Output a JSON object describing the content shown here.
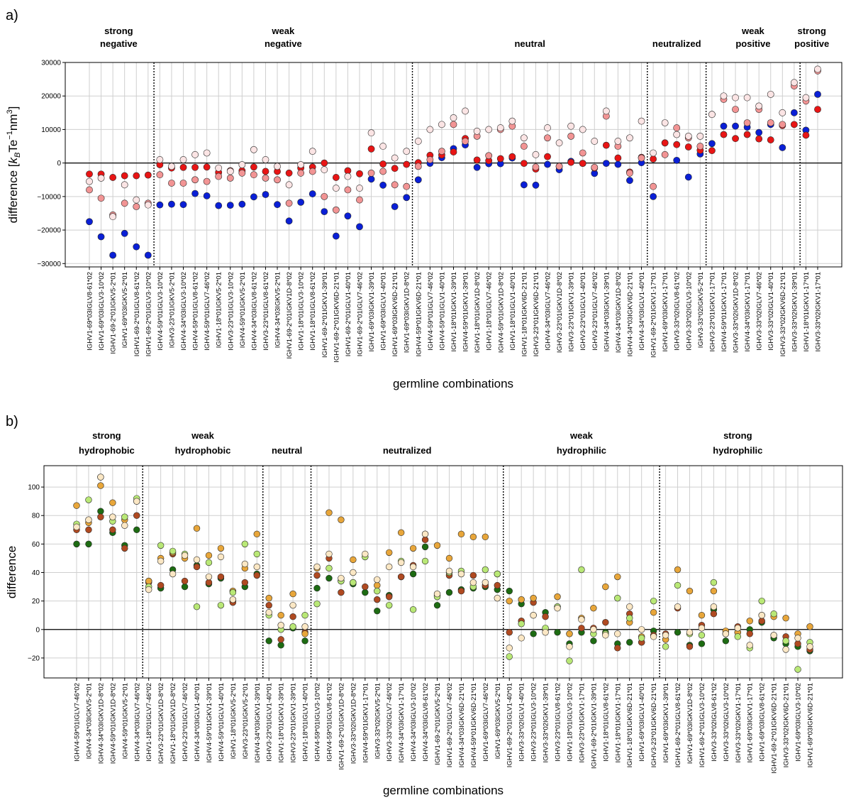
{
  "chart_data": [
    {
      "panel_label": "a)",
      "type": "scatter",
      "xlabel": "germline combinations",
      "ylabel_main": "difference [",
      "ylabel_unit_k": "k",
      "ylabel_unit_B": "B",
      "ylabel_unit_rest": "Te",
      "ylabel_exp1": "−1",
      "ylabel_nm": "nm",
      "ylabel_exp2": "3",
      "ylabel_close": "]",
      "ylim": [
        -31000,
        30000
      ],
      "yticks": [
        -30000,
        -20000,
        -10000,
        0,
        10000,
        20000,
        30000
      ],
      "grid": true,
      "colors": [
        "#0a1fd6",
        "#e81515",
        "#f29494",
        "#fbe4e4"
      ],
      "categories": [
        "IGHV1-69*03IGLV8-61*02",
        "IGHV1-69*03IGLV3-10*02",
        "IGHV1-69-2*01IGKV5-2*01",
        "IGHV1-69*03IGKV5-2*01",
        "IGHV1-69-2*01IGLV8-61*02",
        "IGHV1-69-2*01IGLV3-10*02",
        "IGHV4-59*01IGLV3-10*02",
        "IGHV3-23*01IGKV5-2*01",
        "IGHV4-34*03IGLV3-10*02",
        "IGHV4-59*01IGLV8-61*02",
        "IGHV4-59*01IGLV7-46*02",
        "IGHV1-18*01IGKV5-2*01",
        "IGHV3-23*01IGLV3-10*02",
        "IGHV4-59*01IGKV5-2*01",
        "IGHV4-34*03IGLV8-61*02",
        "IGHV3-23*01IGLV8-61*02",
        "IGHV4-34*03IGKV5-2*01",
        "IGHV1-69-2*01IGKV1D-8*02",
        "IGHV1-18*01IGLV3-10*02",
        "IGHV1-18*01IGLV8-61*02",
        "IGHV1-69-2*01IGKV1-39*01",
        "IGHV1-69-2*01IGKV6D-21*01",
        "IGHV1-69-2*01IGLV1-40*01",
        "IGHV1-69-2*01IGLV7-46*02",
        "IGHV1-69*03IGKV1-39*01",
        "IGHV1-69*03IGLV1-40*01",
        "IGHV1-69*03IGKV6D-21*01",
        "IGHV1-69*03IGKV1D-8*02",
        "IGHV4-59*01IGKV6D-21*01",
        "IGHV4-59*01IGLV7-46*02",
        "IGHV4-59*01IGLV1-40*01",
        "IGHV1-18*01IGKV1-39*01",
        "IGHV4-59*01IGKV1-39*01",
        "IGHV1-18*01IGKV1D-8*02",
        "IGHV1-18*01IGLV7-46*02",
        "IGHV4-59*01IGKV1D-8*02",
        "IGHV1-18*01IGLV1-40*01",
        "IGHV1-18*01IGKV6D-21*01",
        "IGHV3-23*01IGKV6D-21*01",
        "IGHV4-34*03IGLV7-46*02",
        "IGHV3-23*01IGKV1D-8*02",
        "IGHV3-23*01IGKV1-39*01",
        "IGHV3-23*01IGLV1-40*01",
        "IGHV3-23*01IGLV7-46*02",
        "IGHV4-34*03IGKV1-39*01",
        "IGHV4-34*03IGKV1D-8*02",
        "IGHV4-34*03IGKV6D-21*01",
        "IGHV4-34*03IGLV1-40*01",
        "IGHV1-69-2*01IGKV1-17*01",
        "IGHV1-69*03IGKV1-17*01",
        "IGHV3-33*02IGLV8-61*02",
        "IGHV3-33*02IGLV3-10*02",
        "IGHV3-33*02IGKV5-2*01",
        "IGHV3-23*01IGKV1-17*01",
        "IGHV4-59*01IGKV1-17*01",
        "IGHV3-33*02IGKV1D-8*02",
        "IGHV4-34*03IGKV1-17*01",
        "IGHV3-33*02IGLV7-46*02",
        "IGHV3-33*02IGLV1-40*01",
        "IGHV3-33*02IGKV6D-21*01",
        "IGHV3-33*02IGKV1-39*01",
        "IGHV1-18*01IGKV1-17*01",
        "IGHV3-33*02IGKV1-17*01"
      ],
      "series": [
        {
          "values": [
            -17500,
            -22000,
            -27500,
            -21000,
            -25000,
            -27500,
            -12500,
            -12300,
            -12400,
            -9100,
            -9800,
            -12700,
            -12600,
            -12300,
            -10100,
            -9400,
            -12400,
            -17300,
            -11700,
            -9200,
            -14500,
            -21800,
            -15800,
            -19000,
            -4800,
            -6600,
            -13000,
            -10300,
            -5000,
            -100,
            1600,
            4300,
            5400,
            -1300,
            -200,
            -200,
            1500,
            -6500,
            -6600,
            -400,
            -2000,
            500,
            -100,
            -3100,
            -100,
            -400,
            -5200,
            100,
            -10000,
            6000,
            800,
            -4200,
            2700,
            5800,
            11000,
            11000,
            10700,
            9100,
            11500,
            4600,
            15000,
            9800,
            20500
          ]
        },
        {
          "values": [
            -3300,
            -3300,
            -4300,
            -3800,
            -3800,
            -3600,
            -500,
            -1500,
            -1300,
            -1300,
            -1200,
            -2800,
            -2300,
            -2300,
            -1200,
            -2500,
            -2500,
            -3000,
            -1500,
            -1200,
            0,
            -4300,
            -2300,
            -3200,
            4200,
            -300,
            -1600,
            -400,
            100,
            2300,
            2400,
            3300,
            7300,
            900,
            700,
            1300,
            1900,
            -100,
            -1800,
            1900,
            -1000,
            200,
            -100,
            -1500,
            5300,
            1500,
            -2700,
            1700,
            1200,
            6000,
            5500,
            4800,
            3800,
            3700,
            8500,
            7300,
            8500,
            7200,
            6900,
            11200,
            11500,
            8300,
            16000
          ]
        },
        {
          "values": [
            -8000,
            -10500,
            -15500,
            -12000,
            -13000,
            -12000,
            -3500,
            -6000,
            -6000,
            -5000,
            -5500,
            -4000,
            -4500,
            -3000,
            -3500,
            -4500,
            -5000,
            -12000,
            -3000,
            -2500,
            -10000,
            -14000,
            -8000,
            -11000,
            -3000,
            -2500,
            -6500,
            -7000,
            -1000,
            1000,
            3500,
            11500,
            6500,
            8000,
            2200,
            10000,
            11000,
            5000,
            -1200,
            7500,
            -1000,
            8000,
            3000,
            -1300,
            14000,
            5000,
            -3000,
            1500,
            -7000,
            2500,
            10500,
            7500,
            5000,
            14500,
            19000,
            16000,
            12000,
            16000,
            12000,
            11500,
            23000,
            18500,
            27500
          ]
        },
        {
          "values": [
            -5500,
            -4500,
            -16000,
            -6500,
            -11000,
            -12500,
            1000,
            -1000,
            1000,
            2500,
            3000,
            -1500,
            -2500,
            -500,
            4000,
            1000,
            -1000,
            -6500,
            -500,
            3500,
            -2000,
            -7500,
            -4000,
            -7500,
            9000,
            5000,
            1500,
            3500,
            6500,
            10000,
            11500,
            13500,
            15500,
            9500,
            10000,
            10500,
            12500,
            7500,
            2500,
            10500,
            6000,
            11000,
            10000,
            6500,
            15500,
            6500,
            7500,
            12500,
            3000,
            12000,
            8500,
            8000,
            8000,
            14500,
            20000,
            19500,
            19500,
            17000,
            20500,
            15000,
            24000,
            19500,
            28000
          ]
        }
      ],
      "groups": [
        {
          "line1": "strong",
          "line2": "negative",
          "start": 0,
          "end": 5
        },
        {
          "line1": "weak",
          "line2": "negative",
          "start": 6,
          "end": 27
        },
        {
          "line1": "",
          "line2": "neutral",
          "start": 28,
          "end": 47
        },
        {
          "line1": "",
          "line2": "neutralized",
          "start": 48,
          "end": 52
        },
        {
          "line1": "weak",
          "line2": "positive",
          "start": 53,
          "end": 60
        },
        {
          "line1": "strong",
          "line2": "positive",
          "start": 61,
          "end": 62
        }
      ]
    },
    {
      "panel_label": "b)",
      "type": "scatter",
      "xlabel": "germline combinations",
      "ylabel": "difference",
      "ylim": [
        -34,
        115
      ],
      "yticks": [
        -20,
        0,
        20,
        40,
        60,
        80,
        100
      ],
      "grid": true,
      "colors": [
        "#1d6b12",
        "#b04a21",
        "#e8a63a",
        "#b9e876",
        "#fbe7c4"
      ],
      "categories": [
        "IGHV4-59*01IGLV7-46*02",
        "IGHV4-34*03IGKV5-2*01",
        "IGHV4-34*03IGKV1D-8*02",
        "IGHV4-59*01IGKV1D-8*02",
        "IGHV4-59*01IGKV5-2*01",
        "IGHV4-34*03IGLV7-46*02",
        "IGHV1-18*01IGLV7-46*02",
        "IGHV3-23*01IGKV1D-8*02",
        "IGHV1-18*01IGKV1D-8*02",
        "IGHV3-23*01IGLV7-46*02",
        "IGHV4-34*03IGLV1-40*01",
        "IGHV4-59*01IGKV1-39*01",
        "IGHV4-59*01IGLV1-40*01",
        "IGHV1-18*01IGKV5-2*01",
        "IGHV3-23*01IGKV5-2*01",
        "IGHV4-34*03IGKV1-39*01",
        "IGHV3-23*01IGLV1-40*01",
        "IGHV1-18*01IGKV1-39*01",
        "IGHV3-23*01IGKV1-39*01",
        "IGHV1-18*01IGLV1-40*01",
        "IGHV4-59*01IGLV3-10*02",
        "IGHV4-59*01IGLV8-61*02",
        "IGHV1-69-2*01IGKV1D-8*02",
        "IGHV3-33*02IGKV1D-8*02",
        "IGHV4-59*01IGKV1-17*01",
        "IGHV3-33*02IGKV5-2*01",
        "IGHV3-33*02IGLV7-46*02",
        "IGHV4-34*03IGKV1-17*01",
        "IGHV4-34*03IGLV3-10*02",
        "IGHV4-34*03IGLV8-61*02",
        "IGHV1-69-2*01IGKV5-2*01",
        "IGHV1-69-2*01IGLV7-46*02",
        "IGHV4-34*03IGKV6D-21*01",
        "IGHV4-59*01IGKV6D-21*01",
        "IGHV1-69*03IGLV7-46*02",
        "IGHV1-69*03IGKV5-2*01",
        "IGHV1-69-2*01IGLV1-40*01",
        "IGHV3-33*02IGLV1-40*01",
        "IGHV3-23*01IGLV3-10*02",
        "IGHV3-33*02IGKV1-39*01",
        "IGHV3-23*01IGLV8-61*02",
        "IGHV1-18*01IGLV3-10*02",
        "IGHV3-23*01IGKV1-17*01",
        "IGHV1-69-2*01IGKV1-39*01",
        "IGHV1-18*01IGLV8-61*02",
        "IGHV1-18*01IGKV1-17*01",
        "IGHV1-18*01IGKV6D-21*01",
        "IGHV1-69*03IGLV1-40*01",
        "IGHV3-23*01IGKV6D-21*01",
        "IGHV1-69*03IGKV1-39*01",
        "IGHV1-69-2*01IGLV8-61*02",
        "IGHV1-69*03IGKV1D-8*02",
        "IGHV1-69-2*01IGLV3-10*02",
        "IGHV3-33*02IGLV8-61*02",
        "IGHV3-33*02IGLV3-10*02",
        "IGHV3-33*02IGKV1-17*01",
        "IGHV1-69*03IGKV1-17*01",
        "IGHV1-69*03IGLV8-61*02",
        "IGHV1-69-2*01IGKV6D-21*01",
        "IGHV3-33*02IGKV6D-21*01",
        "IGHV1-69*03IGLV3-10*02",
        "IGHV1-69*03IGKV6D-21*01"
      ],
      "series": [
        {
          "values": [
            60,
            60,
            83,
            68,
            59,
            70,
            34,
            29,
            42,
            30,
            45,
            32,
            36,
            20,
            30,
            39,
            -8,
            -11,
            1,
            -8,
            29,
            36,
            34,
            32,
            26,
            13,
            24,
            37,
            39,
            58,
            17,
            26,
            28,
            29,
            30,
            28,
            27,
            18,
            -3,
            12,
            -2,
            -10,
            -2,
            -8,
            -2,
            -10,
            -9,
            -9,
            -1,
            -7,
            -2,
            -11,
            -10,
            14,
            -8,
            -2,
            0,
            5,
            -6,
            -10,
            -12,
            -15
          ]
        },
        {
          "values": [
            70,
            70,
            79,
            70,
            57,
            80,
            33,
            31,
            53,
            34,
            44,
            33,
            37,
            19,
            33,
            38,
            17,
            -7,
            9,
            -2,
            38,
            50,
            26,
            33,
            30,
            21,
            23,
            37,
            45,
            63,
            24,
            38,
            27,
            38,
            31,
            31,
            -2,
            6,
            19,
            9,
            16,
            -3,
            1,
            1,
            5,
            -13,
            11,
            -9,
            -4,
            -3,
            15,
            -12,
            3,
            11,
            -3,
            2,
            -3,
            6,
            -4,
            -5,
            -10,
            -14
          ]
        },
        {
          "values": [
            87,
            75,
            101,
            89,
            77,
            90,
            34,
            50,
            54,
            50,
            71,
            52,
            57,
            27,
            43,
            67,
            22,
            10,
            25,
            -3,
            43,
            82,
            77,
            49,
            51,
            31,
            54,
            68,
            57,
            67,
            59,
            50,
            67,
            65,
            65,
            39,
            20,
            21,
            22,
            0,
            23,
            -3,
            8,
            15,
            30,
            37,
            5,
            -5,
            12,
            -7,
            42,
            27,
            10,
            27,
            -1,
            -2,
            6,
            10,
            9,
            8,
            -3,
            2
          ]
        },
        {
          "values": [
            74,
            91,
            107,
            76,
            79,
            92,
            30,
            59,
            55,
            53,
            16,
            47,
            17,
            26,
            60,
            53,
            10,
            0,
            2,
            10,
            18,
            43,
            34,
            33,
            51,
            27,
            17,
            48,
            14,
            48,
            23,
            40,
            41,
            30,
            42,
            39,
            -19,
            4,
            10,
            1,
            16,
            -22,
            42,
            -3,
            -3,
            22,
            8,
            -6,
            20,
            -12,
            31,
            -3,
            -4,
            33,
            -3,
            -5,
            -13,
            20,
            11,
            -8,
            -28,
            -9
          ]
        },
        {
          "values": [
            72,
            77,
            107,
            79,
            73,
            90,
            28,
            48,
            39,
            52,
            49,
            37,
            51,
            21,
            46,
            44,
            12,
            3,
            17,
            2,
            44,
            53,
            36,
            40,
            53,
            35,
            44,
            47,
            44,
            67,
            25,
            41,
            39,
            33,
            33,
            22,
            -13,
            -6,
            10,
            -2,
            15,
            -12,
            7,
            0,
            -4,
            -3,
            16,
            0,
            -5,
            -4,
            16,
            -2,
            1,
            16,
            -3,
            1,
            -11,
            10,
            -4,
            -14,
            -6,
            -12
          ]
        }
      ],
      "groups": [
        {
          "line1": "strong",
          "line2": "hydrophobic",
          "start": 0,
          "end": 5
        },
        {
          "line1": "weak",
          "line2": "hydrophobic",
          "start": 6,
          "end": 15
        },
        {
          "line1": "",
          "line2": "neutral",
          "start": 16,
          "end": 19
        },
        {
          "line1": "",
          "line2": "neutralized",
          "start": 20,
          "end": 35
        },
        {
          "line1": "weak",
          "line2": "hydrophilic",
          "start": 36,
          "end": 48
        },
        {
          "line1": "strong",
          "line2": "hydrophilic",
          "start": 49,
          "end": 61
        }
      ]
    }
  ]
}
